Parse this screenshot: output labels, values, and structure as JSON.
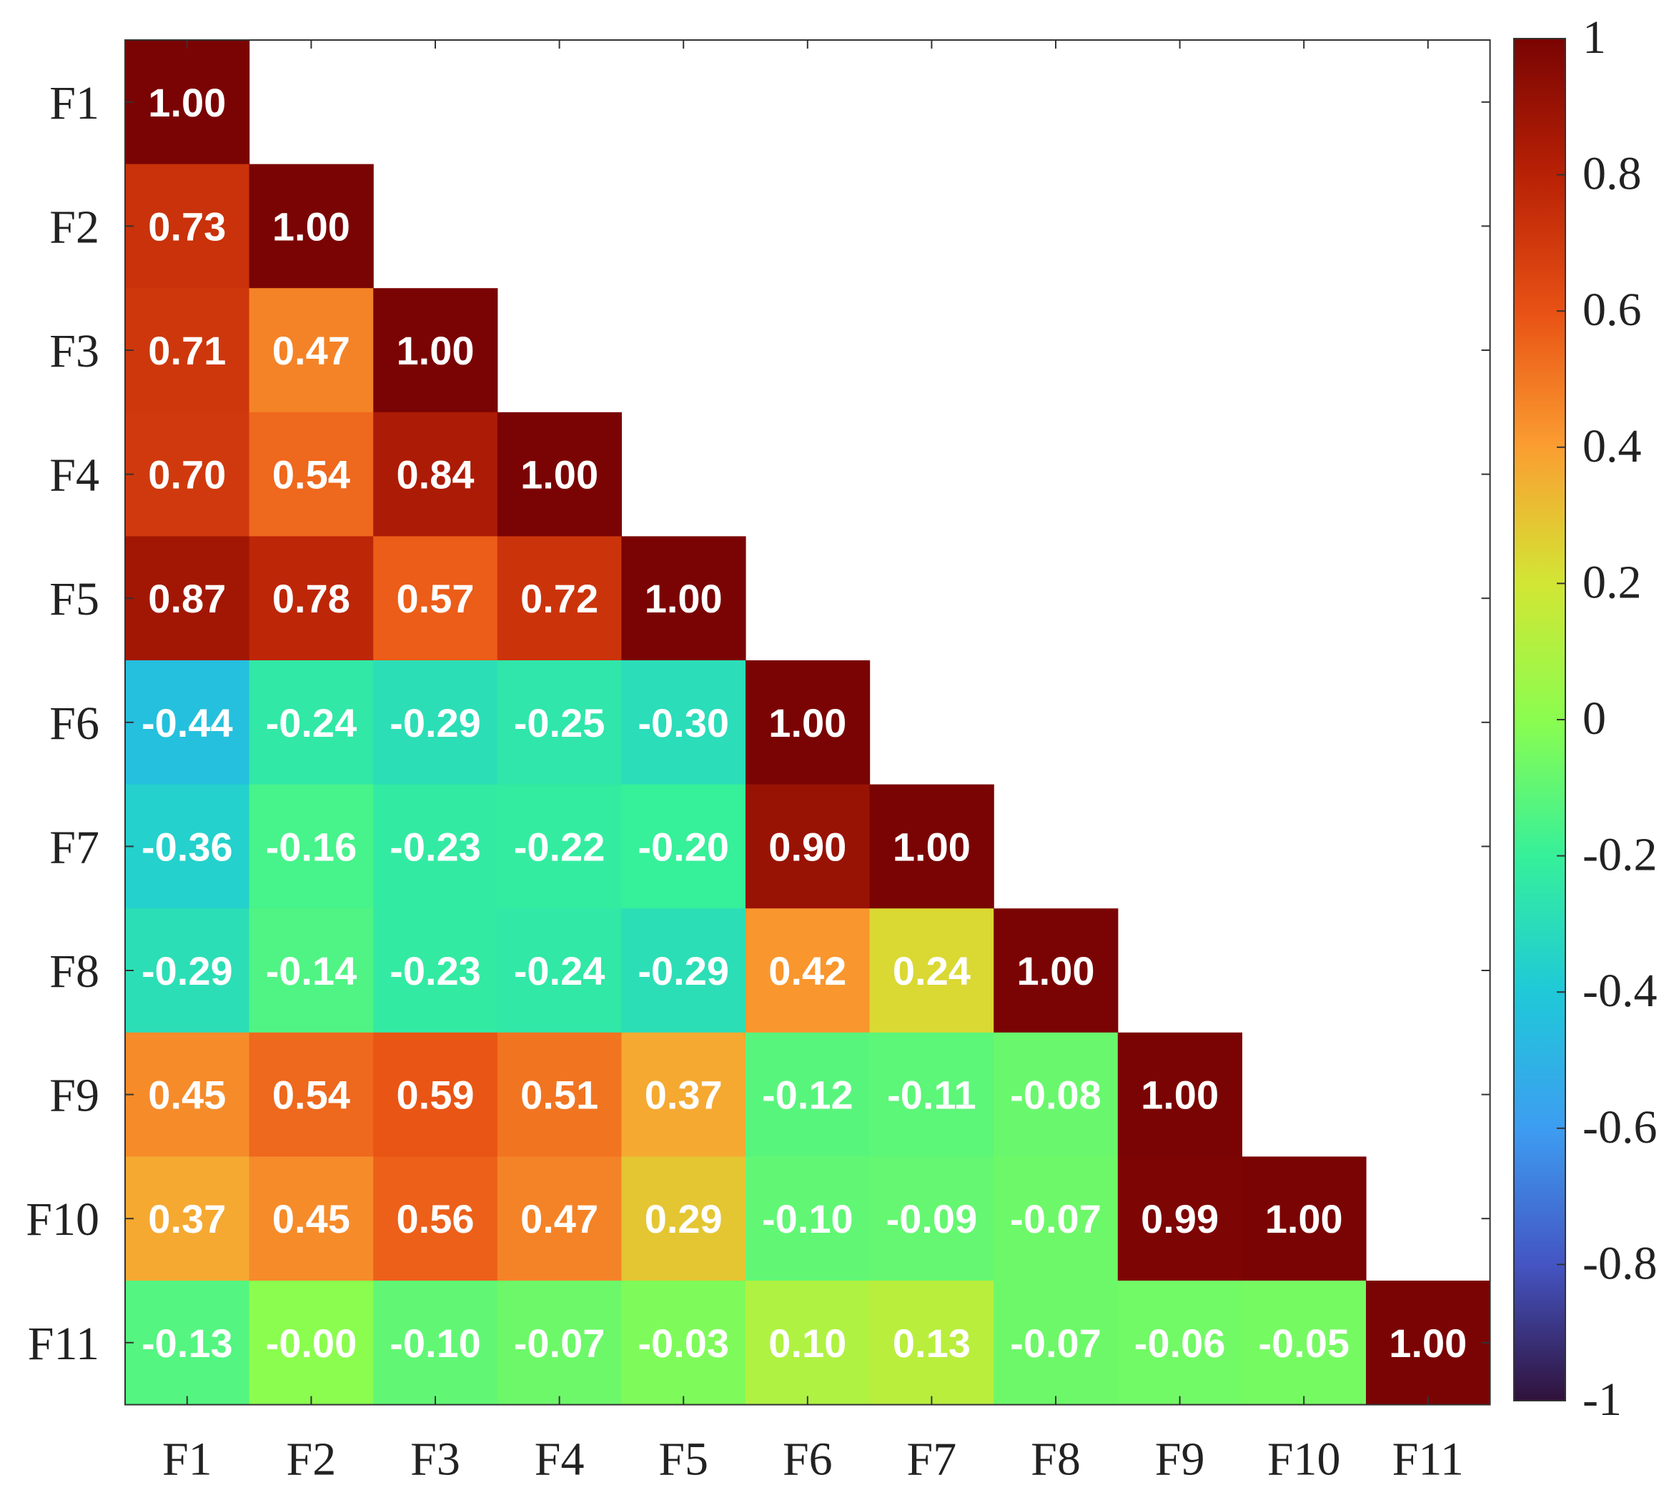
{
  "chart_data": {
    "type": "heatmap",
    "title": "",
    "xlabel": "",
    "ylabel": "",
    "layout": "lower-triangle",
    "categories": [
      "F1",
      "F2",
      "F3",
      "F4",
      "F5",
      "F6",
      "F7",
      "F8",
      "F9",
      "F10",
      "F11"
    ],
    "matrix": [
      [
        1.0
      ],
      [
        0.73,
        1.0
      ],
      [
        0.71,
        0.47,
        1.0
      ],
      [
        0.7,
        0.54,
        0.84,
        1.0
      ],
      [
        0.87,
        0.78,
        0.57,
        0.72,
        1.0
      ],
      [
        -0.44,
        -0.24,
        -0.29,
        -0.25,
        -0.3,
        1.0
      ],
      [
        -0.36,
        -0.16,
        -0.23,
        -0.22,
        -0.2,
        0.9,
        1.0
      ],
      [
        -0.29,
        -0.14,
        -0.23,
        -0.24,
        -0.29,
        0.42,
        0.24,
        1.0
      ],
      [
        0.45,
        0.54,
        0.59,
        0.51,
        0.37,
        -0.12,
        -0.11,
        -0.08,
        1.0
      ],
      [
        0.37,
        0.45,
        0.56,
        0.47,
        0.29,
        -0.1,
        -0.09,
        -0.07,
        0.99,
        1.0
      ],
      [
        -0.13,
        -0.0,
        -0.1,
        -0.07,
        -0.03,
        0.1,
        0.13,
        -0.07,
        -0.06,
        -0.05,
        1.0
      ]
    ],
    "cell_labels": [
      [
        "1.00"
      ],
      [
        "0.73",
        "1.00"
      ],
      [
        "0.71",
        "0.47",
        "1.00"
      ],
      [
        "0.70",
        "0.54",
        "0.84",
        "1.00"
      ],
      [
        "0.87",
        "0.78",
        "0.57",
        "0.72",
        "1.00"
      ],
      [
        "-0.44",
        "-0.24",
        "-0.29",
        "-0.25",
        "-0.30",
        "1.00"
      ],
      [
        "-0.36",
        "-0.16",
        "-0.23",
        "-0.22",
        "-0.20",
        "0.90",
        "1.00"
      ],
      [
        "-0.29",
        "-0.14",
        "-0.23",
        "-0.24",
        "-0.29",
        "0.42",
        "0.24",
        "1.00"
      ],
      [
        "0.45",
        "0.54",
        "0.59",
        "0.51",
        "0.37",
        "-0.12",
        "-0.11",
        "-0.08",
        "1.00"
      ],
      [
        "0.37",
        "0.45",
        "0.56",
        "0.47",
        "0.29",
        "-0.10",
        "-0.09",
        "-0.07",
        "0.99",
        "1.00"
      ],
      [
        "-0.13",
        "-0.00",
        "-0.10",
        "-0.07",
        "-0.03",
        "0.10",
        "0.13",
        "-0.07",
        "-0.06",
        "-0.05",
        "1.00"
      ]
    ],
    "colorbar": {
      "range": [
        -1,
        1
      ],
      "colormap": "turbo",
      "ticks": [
        1,
        0.8,
        0.6,
        0.4,
        0.2,
        0,
        -0.2,
        -0.4,
        -0.6,
        -0.8,
        -1
      ],
      "tick_labels": [
        "1",
        "0.8",
        "0.6",
        "0.4",
        "0.2",
        "0",
        "-0.2",
        "-0.4",
        "-0.6",
        "-0.8",
        "-1"
      ],
      "stops": [
        {
          "v": -1.0,
          "color": "#30123b"
        },
        {
          "v": -0.8,
          "color": "#4455c3"
        },
        {
          "v": -0.6,
          "color": "#3d9df1"
        },
        {
          "v": -0.4,
          "color": "#1fc9d8"
        },
        {
          "v": -0.2,
          "color": "#36f09a"
        },
        {
          "v": 0.0,
          "color": "#8bfd4f"
        },
        {
          "v": 0.2,
          "color": "#d2e634"
        },
        {
          "v": 0.4,
          "color": "#fb9e31"
        },
        {
          "v": 0.6,
          "color": "#e85114"
        },
        {
          "v": 0.8,
          "color": "#b82105"
        },
        {
          "v": 1.0,
          "color": "#7a0403"
        }
      ]
    },
    "grid": false,
    "legend": "colorbar-right"
  }
}
